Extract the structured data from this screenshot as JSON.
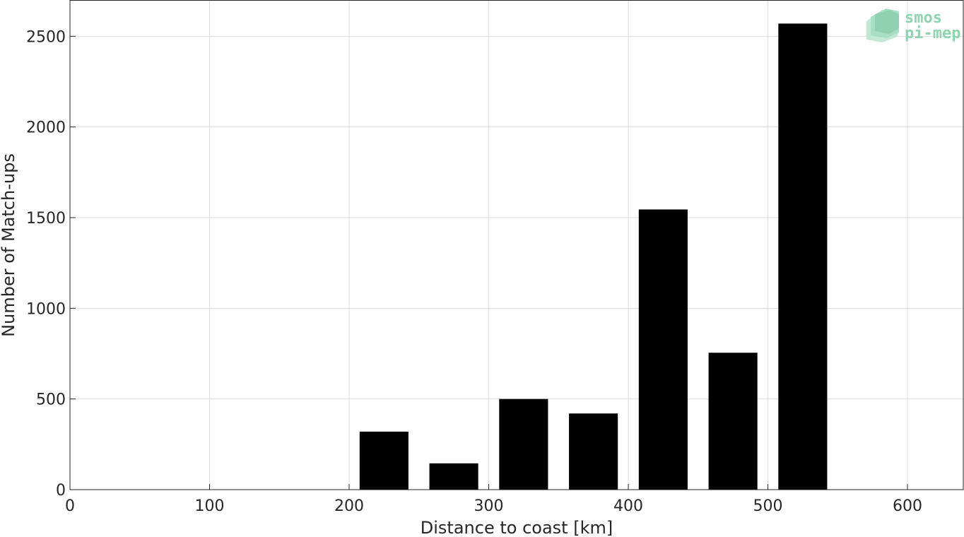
{
  "chart_data": {
    "type": "bar",
    "title": "",
    "xlabel": "Distance to coast [km]",
    "ylabel": "Number of Match-ups",
    "xlim": [
      0,
      640
    ],
    "ylim": [
      0,
      2700
    ],
    "x_ticks": [
      0,
      100,
      200,
      300,
      400,
      500,
      600
    ],
    "y_ticks": [
      0,
      500,
      1000,
      1500,
      2000,
      2500
    ],
    "bar_width": 35,
    "x": [
      225,
      275,
      325,
      375,
      425,
      475,
      525
    ],
    "values": [
      320,
      145,
      500,
      420,
      1545,
      755,
      2570
    ],
    "bar_color": "#000000",
    "grid": true
  },
  "watermark": {
    "line1": "smos",
    "line2": "pi-mep",
    "color": "#8fd3b0"
  }
}
